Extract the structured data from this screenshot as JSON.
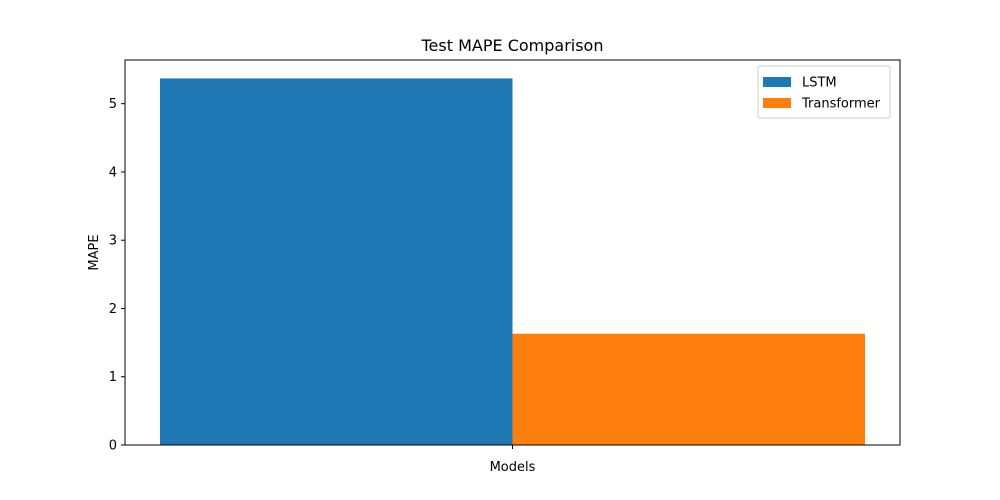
{
  "chart_data": {
    "type": "bar",
    "title": "Test MAPE Comparison",
    "xlabel": "Models",
    "ylabel": "MAPE",
    "categories": [
      "Models"
    ],
    "series": [
      {
        "name": "LSTM",
        "values": [
          5.37
        ],
        "color": "#1f77b4"
      },
      {
        "name": "Transformer",
        "values": [
          1.63
        ],
        "color": "#ff7f0e"
      }
    ],
    "ylim": [
      0,
      5.64
    ],
    "yticks": [
      0,
      1,
      2,
      3,
      4,
      5
    ],
    "grid": false,
    "legend_position": "top-right"
  }
}
